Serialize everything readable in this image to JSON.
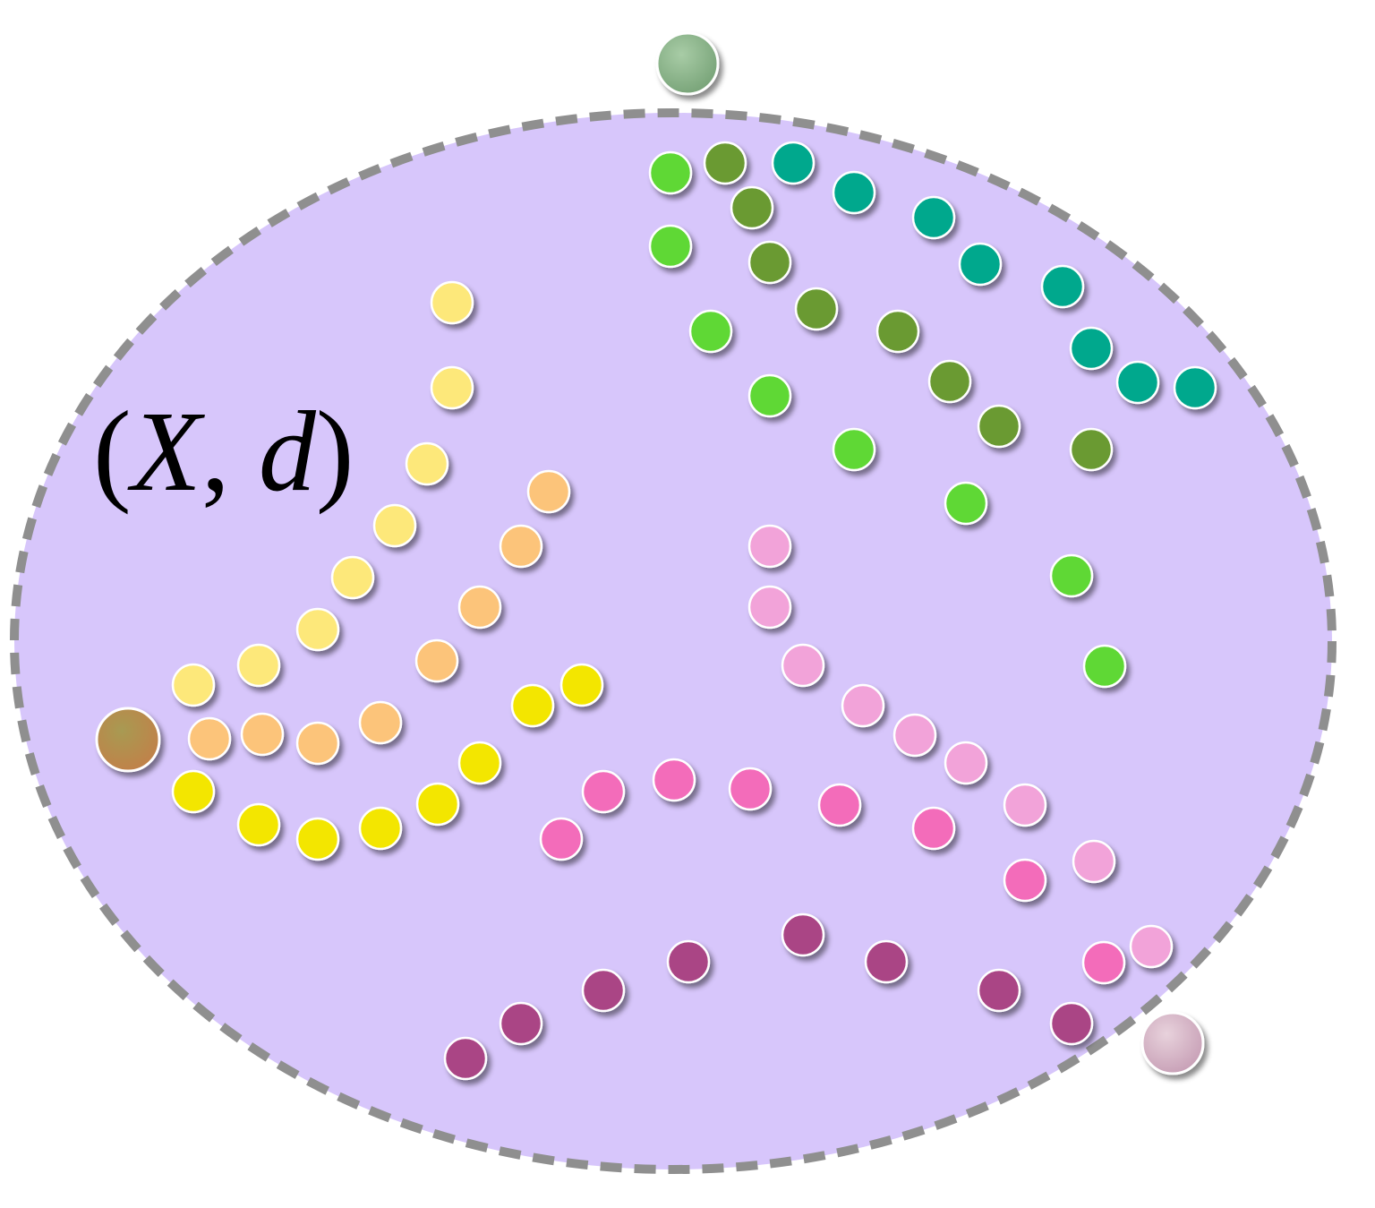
{
  "label": {
    "open": "(",
    "X": "X",
    "comma": ", ",
    "d": "d",
    "close": ")"
  },
  "colors": {
    "space_fill": "#d7c6fb",
    "space_border": "#8f8f8f",
    "light_yellow": "#fde87a",
    "orange": "#fcc47a",
    "yellow": "#f3e600",
    "light_green": "#5fd836",
    "dark_green": "#6a9a32",
    "teal": "#00a88d",
    "light_pink": "#f2a3d9",
    "pink": "#f36cba",
    "purple": "#aa4585",
    "ball_green": "#8fb88f",
    "ball_brown": "#b98a4e",
    "ball_pink": "#d8b4c8"
  }
}
